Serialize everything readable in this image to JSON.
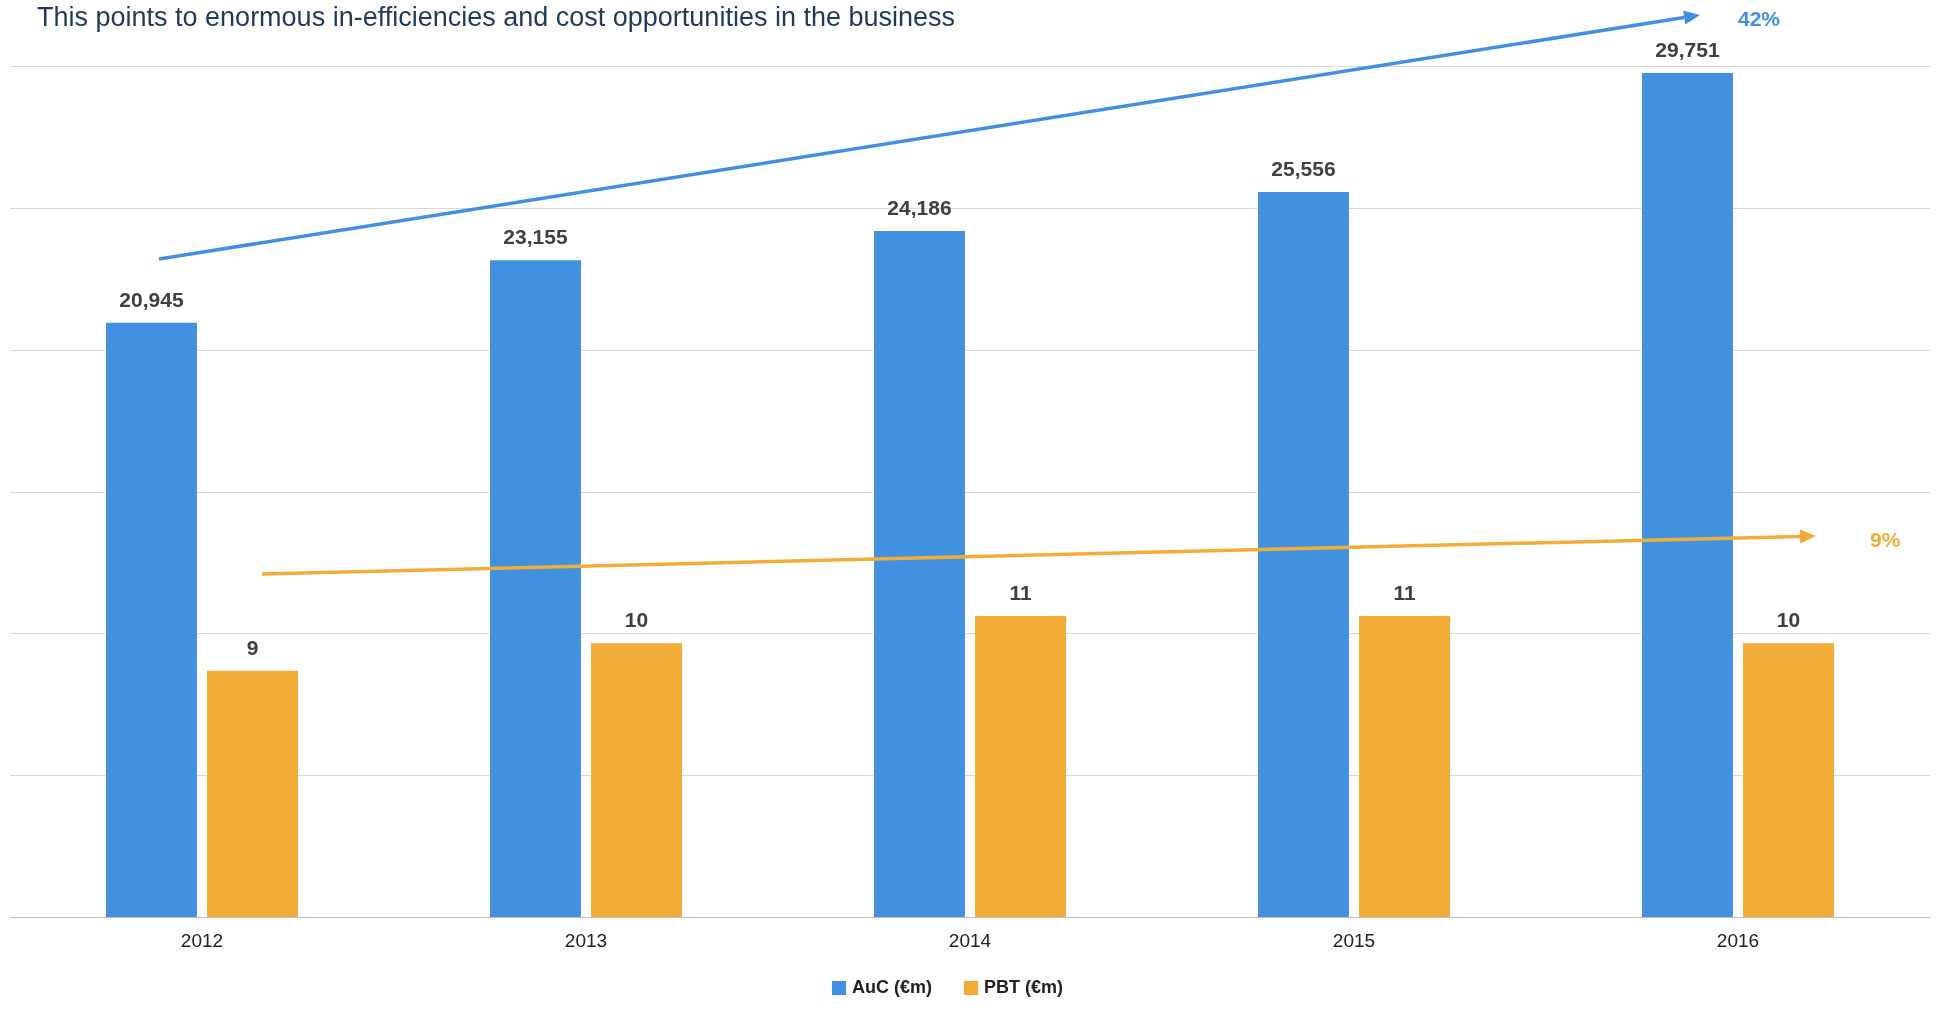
{
  "chart_data": {
    "type": "bar",
    "title": "This points to enormous in-efficiencies and cost opportunities in the business",
    "categories": [
      "2012",
      "2013",
      "2014",
      "2015",
      "2016"
    ],
    "series": [
      {
        "name": "AuC (€m)",
        "color": "#4290e0",
        "values": [
          20945,
          23155,
          24186,
          25556,
          29751
        ],
        "value_labels": [
          "20,945",
          "23,155",
          "24,186",
          "25,556",
          "29,751"
        ]
      },
      {
        "name": "PBT (€m)",
        "color": "#f2ac38",
        "values": [
          9,
          10,
          11,
          11,
          10
        ],
        "axis": "y2"
      }
    ],
    "tick_labels": "x",
    "grid": "y",
    "legend": "bottom",
    "data_labels": true,
    "annotations": [
      "42%",
      "9%"
    ]
  }
}
